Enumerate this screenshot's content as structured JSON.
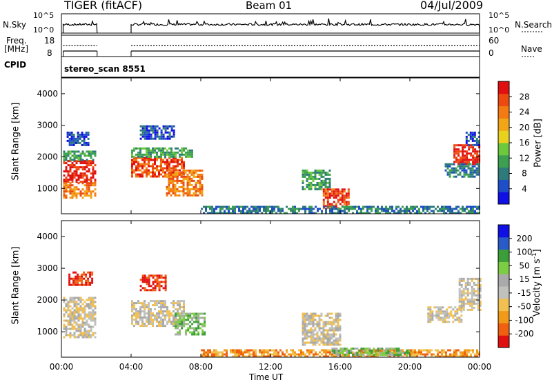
{
  "header": {
    "radar": "TIGER (fitACF)",
    "beam": "Beam 01",
    "date": "04/Jul/2009"
  },
  "top_panels": {
    "nsky": {
      "label": "N.Sky",
      "tick_hi": "10^5",
      "tick_lo": "10^0"
    },
    "nsearch": {
      "label": "N.Search",
      "tick_hi": "10^5",
      "tick_lo": "10^0"
    },
    "freq": {
      "label_line1": "Freq.",
      "label_line2": "[MHz]",
      "tick_hi": "18",
      "tick_lo": "8"
    },
    "nave": {
      "label": "Nave",
      "tick_hi": "60",
      "tick_lo": "0"
    },
    "cpid": {
      "label": "CPID",
      "value": "stereo_scan 8551"
    }
  },
  "chart_data": [
    {
      "type": "heatmap",
      "name": "power",
      "ylabel": "Slant Range [km]",
      "yticks": [
        "1000",
        "2000",
        "3000",
        "4000"
      ],
      "ylim": [
        200,
        4500
      ],
      "xlim": [
        0,
        24
      ],
      "colorbar": {
        "label": "Power [dB]",
        "ticks": [
          "4",
          "8",
          "12",
          "16",
          "20",
          "24",
          "28"
        ],
        "colors": [
          "#1010e6",
          "#1f4fc8",
          "#2f7a7a",
          "#3ca050",
          "#6cc83c",
          "#e8d21e",
          "#f2a516",
          "#f47a12",
          "#ec4a10",
          "#e01010"
        ]
      },
      "patches": [
        {
          "t0": 0.1,
          "t1": 2.0,
          "r0": 1200,
          "r1": 1900,
          "level": 9
        },
        {
          "t0": 0.1,
          "t1": 2.0,
          "r0": 700,
          "r1": 1200,
          "level": 7
        },
        {
          "t0": 0.1,
          "t1": 2.0,
          "r0": 1900,
          "r1": 2200,
          "level": 3
        },
        {
          "t0": 0.3,
          "t1": 1.6,
          "r0": 2400,
          "r1": 2800,
          "level": 1
        },
        {
          "t0": 4.0,
          "t1": 7.0,
          "r0": 1400,
          "r1": 2000,
          "level": 8
        },
        {
          "t0": 4.0,
          "t1": 7.5,
          "r0": 2000,
          "r1": 2300,
          "level": 3
        },
        {
          "t0": 6.0,
          "t1": 8.1,
          "r0": 800,
          "r1": 1600,
          "level": 7
        },
        {
          "t0": 4.5,
          "t1": 6.5,
          "r0": 2600,
          "r1": 3000,
          "level": 1
        },
        {
          "t0": 13.8,
          "t1": 15.4,
          "r0": 1000,
          "r1": 1600,
          "level": 3
        },
        {
          "t0": 15.0,
          "t1": 16.5,
          "r0": 400,
          "r1": 1000,
          "level": 8
        },
        {
          "t0": 8.0,
          "t1": 24.0,
          "r0": 200,
          "r1": 450,
          "level": 2
        },
        {
          "t0": 22.5,
          "t1": 24.0,
          "r0": 1800,
          "r1": 2400,
          "level": 9
        },
        {
          "t0": 22.0,
          "t1": 24.0,
          "r0": 1400,
          "r1": 1800,
          "level": 2
        },
        {
          "t0": 23.2,
          "t1": 24.0,
          "r0": 2400,
          "r1": 2800,
          "level": 1
        }
      ]
    },
    {
      "type": "heatmap",
      "name": "velocity",
      "ylabel": "Slant Range [km]",
      "xlabel": "Time UT",
      "xticks": [
        "00:00",
        "04:00",
        "08:00",
        "12:00",
        "16:00",
        "20:00",
        "00:00"
      ],
      "yticks": [
        "1000",
        "2000",
        "3000",
        "4000"
      ],
      "ylim": [
        200,
        4500
      ],
      "xlim": [
        0,
        24
      ],
      "colorbar": {
        "label_main": "Velocity [m s",
        "label_sup": "-1",
        "label_end": "]",
        "ticks": [
          "-200",
          "-100",
          "-50",
          "-15",
          "15",
          "50",
          "100",
          "200"
        ],
        "colors": [
          "#e01010",
          "#f06010",
          "#f09a18",
          "#f2c050",
          "#c0c0bc",
          "#aaaaaa",
          "#7ccc44",
          "#3c9e38",
          "#2a5ac8",
          "#1010e6"
        ]
      },
      "patches": [
        {
          "t0": 0.1,
          "t1": 2.0,
          "r0": 800,
          "r1": 2100,
          "level": 4
        },
        {
          "t0": 0.4,
          "t1": 1.8,
          "r0": 2500,
          "r1": 2900,
          "level": 0
        },
        {
          "t0": 4.0,
          "t1": 7.0,
          "r0": 1200,
          "r1": 2000,
          "level": 4
        },
        {
          "t0": 6.5,
          "t1": 8.2,
          "r0": 900,
          "r1": 1600,
          "level": 6
        },
        {
          "t0": 4.5,
          "t1": 6.0,
          "r0": 2300,
          "r1": 2800,
          "level": 0
        },
        {
          "t0": 13.8,
          "t1": 16.0,
          "r0": 600,
          "r1": 1600,
          "level": 4
        },
        {
          "t0": 8.0,
          "t1": 24.0,
          "r0": 200,
          "r1": 450,
          "level": 2
        },
        {
          "t0": 15.5,
          "t1": 20.0,
          "r0": 300,
          "r1": 500,
          "level": 6
        },
        {
          "t0": 22.8,
          "t1": 24.0,
          "r0": 1700,
          "r1": 2700,
          "level": 4
        },
        {
          "t0": 21.0,
          "t1": 23.0,
          "r0": 1300,
          "r1": 1800,
          "level": 4
        }
      ]
    }
  ]
}
